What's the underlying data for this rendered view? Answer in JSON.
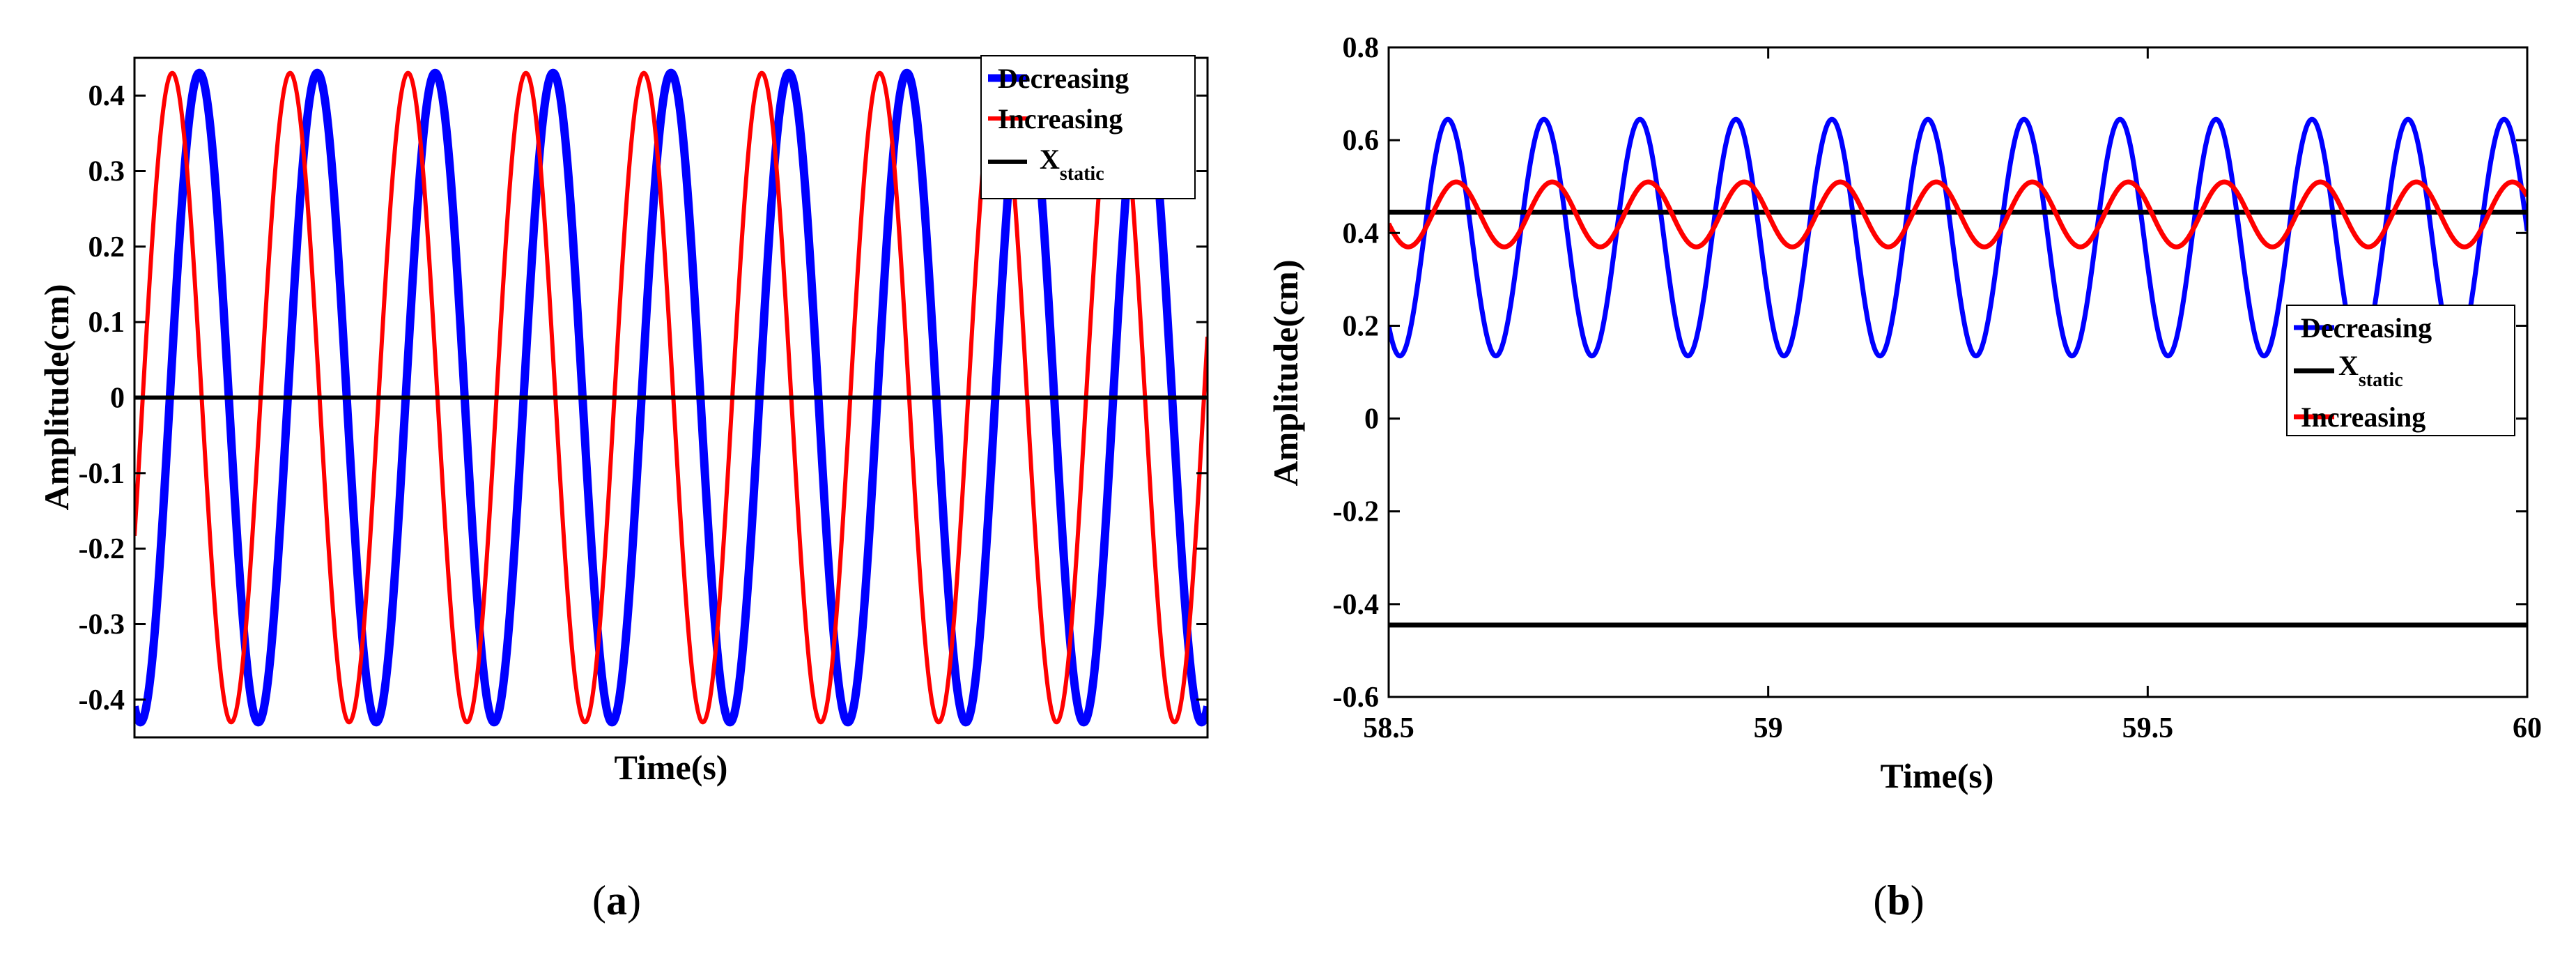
{
  "chart_data": [
    {
      "type": "line",
      "panel_label": "a",
      "xlabel": "Time(s)",
      "ylabel": "Amplitude(cm)",
      "ylim": [
        -0.45,
        0.45
      ],
      "xlim": [
        0,
        9.1
      ],
      "yticks": [
        "-0.4",
        "-0.3",
        "-0.2",
        "-0.1",
        "0",
        "0.1",
        "0.2",
        "0.3",
        "0.4"
      ],
      "legend_position": "top-right",
      "legend": [
        "Decreasing",
        "Increasing",
        "X",
        "static"
      ],
      "series": [
        {
          "name": "Decreasing",
          "color": "#0000ff",
          "function": "sine",
          "amplitude": 0.43,
          "offset": 0,
          "period": 1.0,
          "phase_peak": 0.55
        },
        {
          "name": "Increasing",
          "color": "#ff0000",
          "function": "sine",
          "amplitude": 0.43,
          "offset": 0,
          "period": 1.0,
          "phase_peak": 0.32
        },
        {
          "name": "X_static",
          "color": "#000000",
          "function": "constant",
          "value": 0
        }
      ]
    },
    {
      "type": "line",
      "panel_label": "b",
      "xlabel": "Time(s)",
      "ylabel": "Amplitude(cm)",
      "xlim": [
        58.5,
        60
      ],
      "ylim": [
        -0.6,
        0.8
      ],
      "xticks": [
        "58.5",
        "59",
        "59.5",
        "60"
      ],
      "yticks": [
        "-0.6",
        "-0.4",
        "-0.2",
        "0",
        "0.2",
        "0.4",
        "0.6",
        "0.8"
      ],
      "legend_position": "right",
      "legend": [
        "Decreasing",
        "X",
        "static",
        "Increasing"
      ],
      "series": [
        {
          "name": "Decreasing",
          "color": "#0000ff",
          "function": "sine",
          "amplitude": 0.255,
          "offset": 0.39,
          "period": 0.1265,
          "phase_peak": 58.578
        },
        {
          "name": "X_static",
          "color": "#000000",
          "function": "constant",
          "value": 0.445
        },
        {
          "name": "X_static_negative",
          "color": "#000000",
          "function": "constant",
          "value": -0.445
        },
        {
          "name": "Increasing",
          "color": "#ff0000",
          "function": "sine",
          "amplitude": 0.07,
          "offset": 0.44,
          "period": 0.1265,
          "phase_peak": 58.589
        }
      ]
    }
  ]
}
